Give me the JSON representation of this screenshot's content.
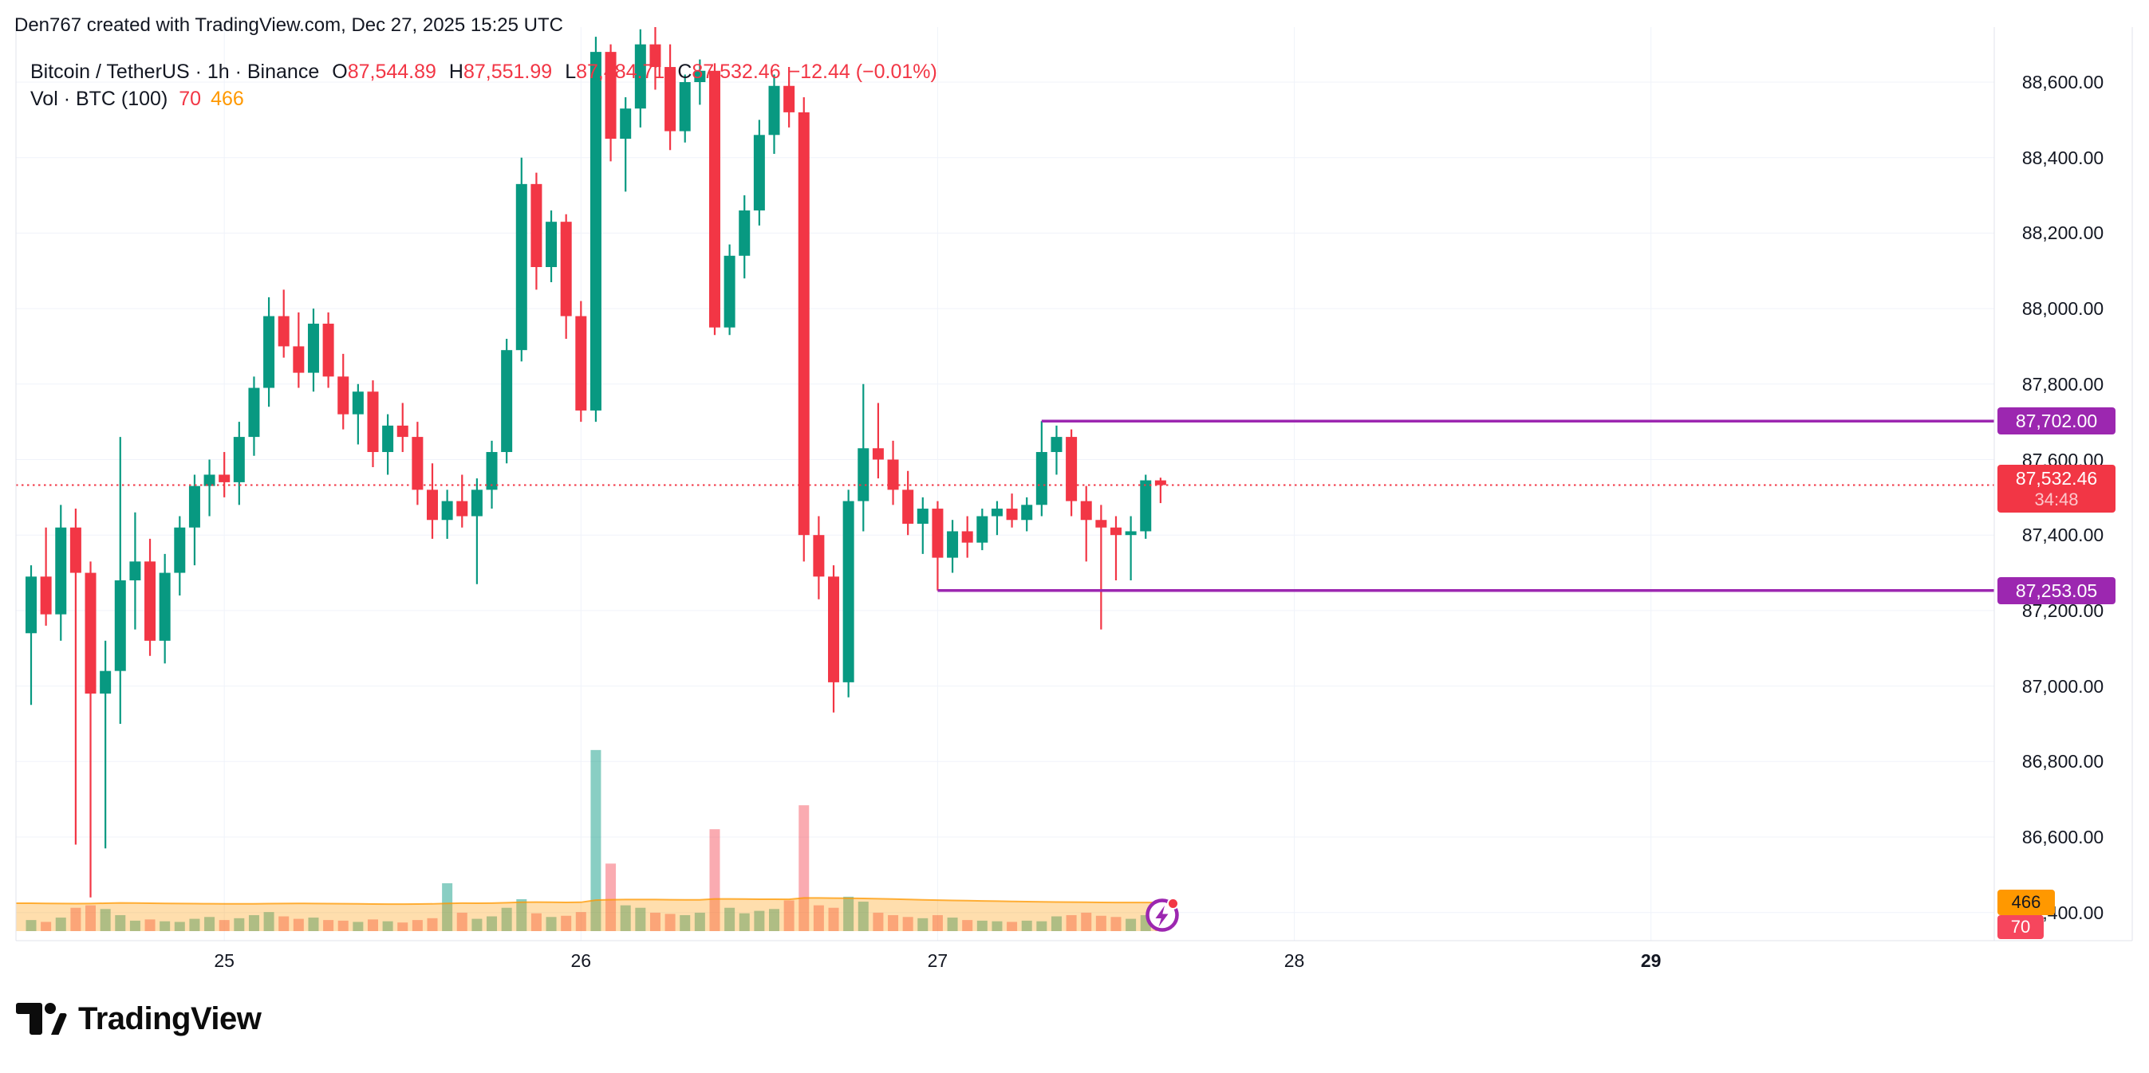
{
  "header": {
    "title": "Den767 created with TradingView.com, Dec 27, 2025 15:25 UTC"
  },
  "legend": {
    "symbol": "Bitcoin / TetherUS · 1h · Binance",
    "o_label": "O",
    "o": "87,544.89",
    "h_label": "H",
    "h": "87,551.99",
    "l_label": "L",
    "l": "87,484.71",
    "c_label": "C",
    "c": "87,532.46",
    "change": "−12.44 (−0.01%)",
    "vol_label": "Vol · BTC (100)",
    "vol_current": "70",
    "vol_ma": "466"
  },
  "price_axis": {
    "labels": [
      "88,600.00",
      "88,400.00",
      "88,200.00",
      "88,000.00",
      "87,800.00",
      "87,600.00",
      "87,400.00",
      "87,200.00",
      "87,000.00",
      "86,800.00",
      "86,600.00",
      "86,400.00"
    ],
    "badges": {
      "resistance": "87,702.00",
      "last_price": "87,532.46",
      "countdown": "34:48",
      "support": "87,253.05",
      "vol_ma": "466",
      "vol_current": "70"
    }
  },
  "time_axis": {
    "labels": [
      {
        "text": "25",
        "index": 13,
        "bold": false
      },
      {
        "text": "26",
        "index": 37,
        "bold": false
      },
      {
        "text": "27",
        "index": 61,
        "bold": false
      },
      {
        "text": "28",
        "index": 85,
        "bold": false
      },
      {
        "text": "29",
        "index": 109,
        "bold": true
      }
    ]
  },
  "footer": {
    "brand": "TradingView"
  },
  "colors": {
    "up": "#089981",
    "down": "#F23645",
    "accent_purple": "#9C27B0",
    "vol_ma_orange": "#FF9800",
    "text": "#131722",
    "grid": "#F0F3FA",
    "border": "#E0E3EB",
    "vol_up": "rgba(8,153,129,0.48)",
    "vol_down": "rgba(242,54,69,0.42)",
    "vol_ma_fill": "rgba(255,152,0,0.32)"
  },
  "chart_data": {
    "type": "candlestick+volume",
    "symbol": "Bitcoin / TetherUS",
    "interval": "1h",
    "exchange": "Binance",
    "ylim": [
      86330,
      88750
    ],
    "y_ticks": [
      88600,
      88400,
      88200,
      88000,
      87800,
      87600,
      87400,
      87200,
      87000,
      86800,
      86600,
      86400
    ],
    "levels": {
      "resistance": 87702.0,
      "support": 87253.05,
      "last_price": 87532.46,
      "resistance_start_index": 68,
      "support_start_index": 61
    },
    "last_bar": {
      "open": 87544.89,
      "high": 87551.99,
      "low": 87484.71,
      "close": 87532.46,
      "change": -12.44,
      "change_pct": -0.01,
      "countdown": "34:48"
    },
    "volume_ma_period": 100,
    "volume_ma_value": 466,
    "volume_current": 70,
    "candles": [
      [
        87140,
        87320,
        86950,
        87290
      ],
      [
        87290,
        87420,
        87160,
        87190
      ],
      [
        87190,
        87480,
        87120,
        87420
      ],
      [
        87420,
        87470,
        86580,
        87300
      ],
      [
        87300,
        87330,
        86440,
        86980
      ],
      [
        86980,
        87120,
        86570,
        87040
      ],
      [
        87040,
        87660,
        86900,
        87280
      ],
      [
        87280,
        87460,
        87150,
        87330
      ],
      [
        87330,
        87390,
        87080,
        87120
      ],
      [
        87120,
        87350,
        87060,
        87300
      ],
      [
        87300,
        87450,
        87240,
        87420
      ],
      [
        87420,
        87560,
        87320,
        87530
      ],
      [
        87530,
        87600,
        87450,
        87560
      ],
      [
        87560,
        87620,
        87500,
        87540
      ],
      [
        87540,
        87700,
        87480,
        87660
      ],
      [
        87660,
        87820,
        87610,
        87790
      ],
      [
        87790,
        88030,
        87740,
        87980
      ],
      [
        87980,
        88050,
        87870,
        87900
      ],
      [
        87900,
        87990,
        87790,
        87830
      ],
      [
        87830,
        88000,
        87780,
        87960
      ],
      [
        87960,
        87990,
        87790,
        87820
      ],
      [
        87820,
        87880,
        87680,
        87720
      ],
      [
        87720,
        87800,
        87640,
        87780
      ],
      [
        87780,
        87810,
        87580,
        87620
      ],
      [
        87620,
        87720,
        87560,
        87690
      ],
      [
        87690,
        87750,
        87620,
        87660
      ],
      [
        87660,
        87700,
        87480,
        87520
      ],
      [
        87520,
        87590,
        87390,
        87440
      ],
      [
        87440,
        87520,
        87390,
        87490
      ],
      [
        87490,
        87560,
        87420,
        87450
      ],
      [
        87450,
        87550,
        87270,
        87520
      ],
      [
        87520,
        87650,
        87470,
        87620
      ],
      [
        87620,
        87920,
        87590,
        87890
      ],
      [
        87890,
        88400,
        87860,
        88330
      ],
      [
        88330,
        88360,
        88050,
        88110
      ],
      [
        88110,
        88260,
        88070,
        88230
      ],
      [
        88230,
        88250,
        87920,
        87980
      ],
      [
        87980,
        88020,
        87700,
        87730
      ],
      [
        87730,
        88720,
        87700,
        88680
      ],
      [
        88680,
        88700,
        88390,
        88450
      ],
      [
        88450,
        88560,
        88310,
        88530
      ],
      [
        88530,
        88740,
        88480,
        88700
      ],
      [
        88700,
        88750,
        88580,
        88640
      ],
      [
        88640,
        88700,
        88420,
        88470
      ],
      [
        88470,
        88620,
        88440,
        88600
      ],
      [
        88600,
        88660,
        88540,
        88630
      ],
      [
        88630,
        88650,
        87930,
        87950
      ],
      [
        87950,
        88170,
        87930,
        88140
      ],
      [
        88140,
        88300,
        88080,
        88260
      ],
      [
        88260,
        88500,
        88220,
        88460
      ],
      [
        88460,
        88620,
        88410,
        88590
      ],
      [
        88590,
        88640,
        88480,
        88520
      ],
      [
        88520,
        88560,
        87330,
        87400
      ],
      [
        87400,
        87450,
        87230,
        87290
      ],
      [
        87290,
        87320,
        86930,
        87010
      ],
      [
        87010,
        87520,
        86970,
        87490
      ],
      [
        87490,
        87800,
        87410,
        87630
      ],
      [
        87630,
        87750,
        87550,
        87600
      ],
      [
        87600,
        87650,
        87480,
        87520
      ],
      [
        87520,
        87570,
        87400,
        87430
      ],
      [
        87430,
        87500,
        87350,
        87470
      ],
      [
        87470,
        87490,
        87253.05,
        87340
      ],
      [
        87340,
        87440,
        87300,
        87410
      ],
      [
        87410,
        87450,
        87340,
        87380
      ],
      [
        87380,
        87470,
        87360,
        87450
      ],
      [
        87450,
        87490,
        87400,
        87470
      ],
      [
        87470,
        87510,
        87420,
        87440
      ],
      [
        87440,
        87500,
        87410,
        87480
      ],
      [
        87480,
        87702,
        87450,
        87620
      ],
      [
        87620,
        87690,
        87560,
        87660
      ],
      [
        87660,
        87680,
        87450,
        87490
      ],
      [
        87490,
        87530,
        87330,
        87440
      ],
      [
        87440,
        87480,
        87150,
        87420
      ],
      [
        87420,
        87450,
        87280,
        87400
      ],
      [
        87400,
        87450,
        87280,
        87410
      ],
      [
        87410,
        87560,
        87390,
        87545
      ],
      [
        87544.89,
        87551.99,
        87484.71,
        87532.46
      ]
    ],
    "volumes": [
      180,
      150,
      220,
      380,
      420,
      360,
      260,
      170,
      190,
      160,
      150,
      200,
      230,
      180,
      210,
      260,
      310,
      240,
      200,
      220,
      180,
      170,
      150,
      190,
      160,
      140,
      180,
      210,
      780,
      300,
      200,
      240,
      380,
      520,
      290,
      230,
      250,
      310,
      2950,
      1100,
      420,
      380,
      300,
      280,
      260,
      300,
      1660,
      380,
      290,
      330,
      360,
      500,
      2050,
      420,
      380,
      560,
      480,
      300,
      260,
      230,
      210,
      260,
      220,
      180,
      170,
      160,
      150,
      170,
      160,
      240,
      260,
      300,
      250,
      230,
      200,
      260,
      70
    ],
    "vol_ma_series": [
      455,
      452,
      450,
      448,
      450,
      455,
      460,
      458,
      455,
      452,
      450,
      448,
      446,
      445,
      444,
      445,
      448,
      450,
      452,
      450,
      448,
      446,
      444,
      442,
      440,
      440,
      442,
      444,
      452,
      456,
      455,
      456,
      462,
      470,
      472,
      470,
      468,
      470,
      505,
      512,
      515,
      515,
      514,
      512,
      510,
      509,
      525,
      525,
      522,
      520,
      519,
      518,
      540,
      540,
      538,
      536,
      532,
      528,
      522,
      516,
      510,
      505,
      500,
      496,
      492,
      488,
      484,
      480,
      477,
      474,
      472,
      470,
      468,
      466,
      466,
      466,
      466
    ]
  }
}
